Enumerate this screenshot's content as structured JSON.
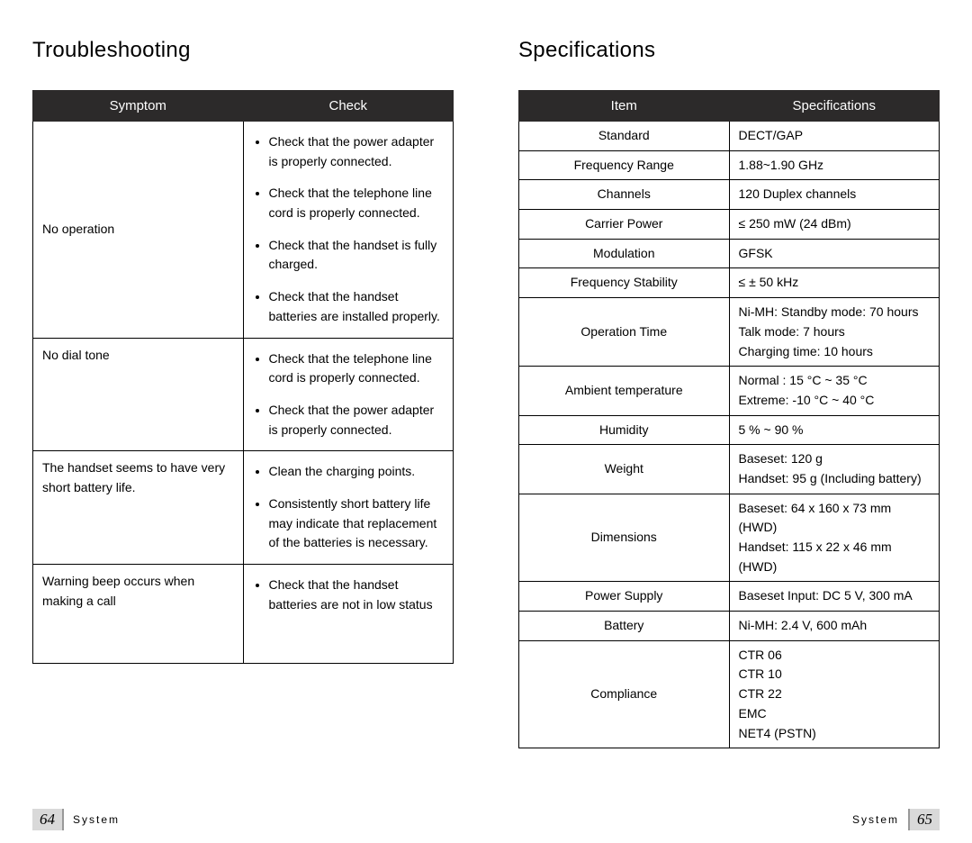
{
  "leftPage": {
    "title": "Troubleshooting",
    "table": {
      "headers": [
        "Symptom",
        "Check"
      ],
      "col_widths": [
        "120px",
        "auto"
      ],
      "header_bg": "#2c2a2a",
      "header_fg": "#ffffff",
      "border_color": "#000000",
      "rows": [
        {
          "symptom": "No operation",
          "checks": [
            "Check that the power adapter is properly connected.",
            "Check that the telephone line cord is properly connected.",
            "Check that the handset is fully charged.",
            "Check that the handset batteries are installed properly."
          ]
        },
        {
          "symptom": "No dial tone",
          "checks": [
            "Check that the telephone line cord is properly connected.",
            "Check that the power adapter is properly connected."
          ]
        },
        {
          "symptom": "The handset seems to have very short battery life.",
          "checks": [
            "Clean the charging points.",
            "Consistently short battery life may indicate that replacement of the batteries is necessary."
          ]
        },
        {
          "symptom": "Warning beep occurs when making a call",
          "checks": [
            "Check that the handset batteries are not in low status"
          ],
          "extra_pad": true
        }
      ]
    },
    "footer": {
      "pagenum": "64",
      "label": "System"
    }
  },
  "rightPage": {
    "title": "Specifications",
    "table": {
      "headers": [
        "Item",
        "Specifications"
      ],
      "col_widths": [
        "170px",
        "auto"
      ],
      "header_bg": "#2c2a2a",
      "header_fg": "#ffffff",
      "border_color": "#000000",
      "rows": [
        {
          "item": "Standard",
          "spec": "DECT/GAP"
        },
        {
          "item": "Frequency Range",
          "spec": "1.88~1.90 GHz"
        },
        {
          "item": "Channels",
          "spec": "120 Duplex channels"
        },
        {
          "item": "Carrier Power",
          "spec": "≤ 250 mW  (24 dBm)"
        },
        {
          "item": "Modulation",
          "spec": "GFSK"
        },
        {
          "item": "Frequency Stability",
          "spec": "≤ ± 50 kHz"
        },
        {
          "item": "Operation Time",
          "spec": "Ni-MH: Standby mode: 70 hours\n             Talk mode: 7 hours\n             Charging time: 10 hours"
        },
        {
          "item": "Ambient temperature",
          "spec": "Normal : 15 °C ~ 35 °C\nExtreme: -10 °C ~ 40 °C"
        },
        {
          "item": "Humidity",
          "spec": "5 % ~ 90 %"
        },
        {
          "item": "Weight",
          "spec": "Baseset: 120 g\nHandset: 95 g (Including battery)"
        },
        {
          "item": "Dimensions",
          "spec": "Baseset: 64 x 160 x 73 mm (HWD)\nHandset: 115 x 22 x 46 mm (HWD)"
        },
        {
          "item": "Power Supply",
          "spec": "Baseset Input: DC 5 V, 300 mA"
        },
        {
          "item": "Battery",
          "spec": "Ni-MH: 2.4 V, 600 mAh"
        },
        {
          "item": "Compliance",
          "spec": "CTR 06\nCTR 10\nCTR 22\nEMC\nNET4 (PSTN)"
        }
      ]
    },
    "footer": {
      "pagenum": "65",
      "label": "System"
    }
  },
  "style": {
    "page_bg": "#ffffff",
    "title_fontsize": 24,
    "body_fontsize": 14,
    "header_fontsize": 15,
    "footer_fontsize": 12,
    "pagenum_bg": "#d9d9d9"
  }
}
